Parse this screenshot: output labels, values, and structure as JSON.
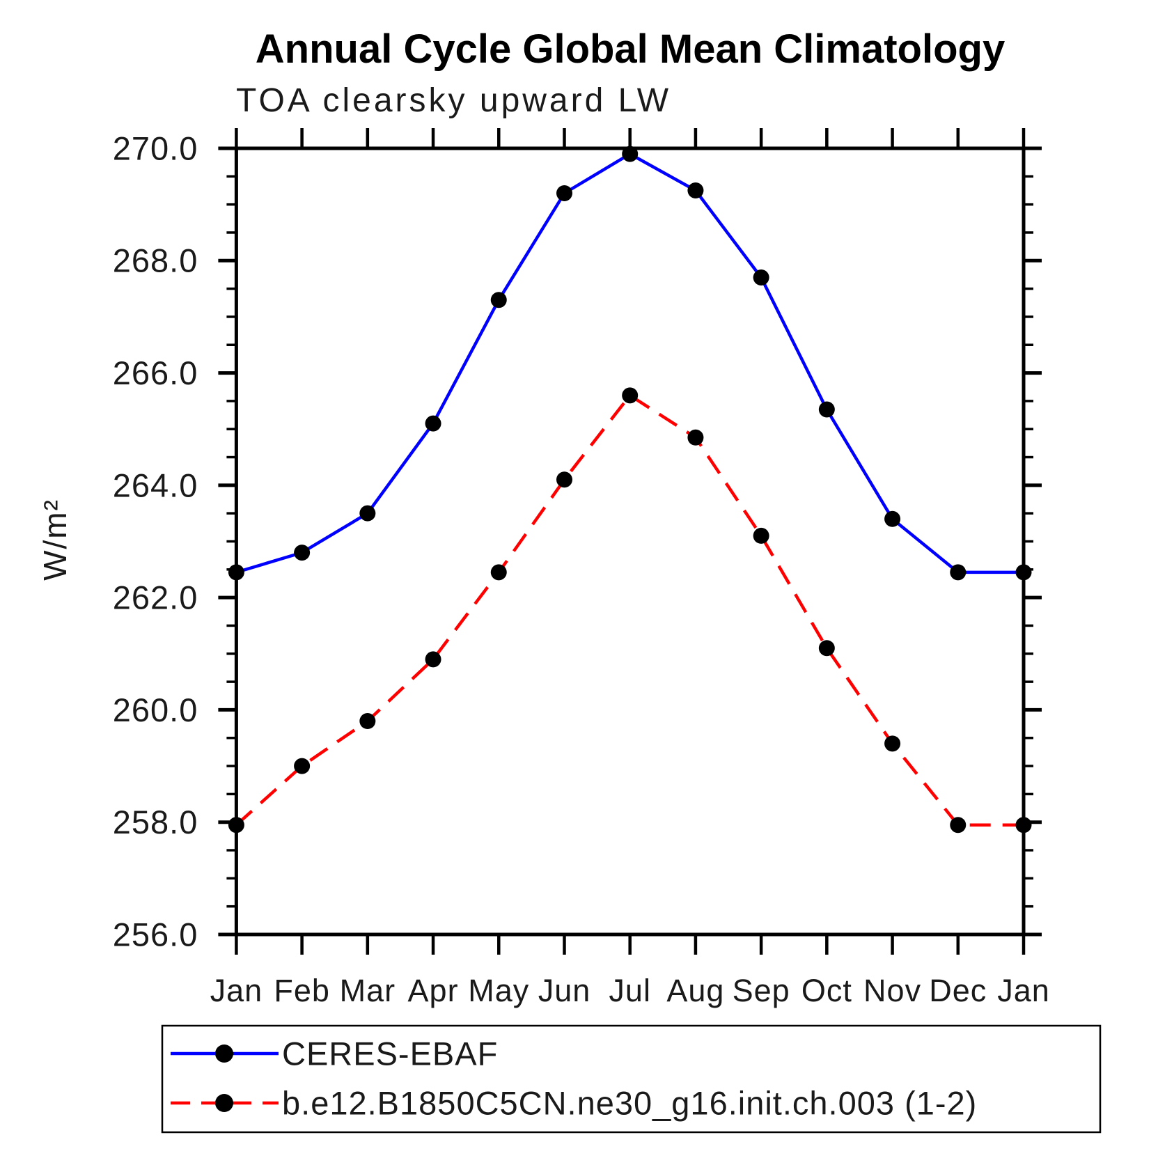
{
  "title": "Annual Cycle Global Mean Climatology",
  "subtitle": "TOA clearsky upward LW",
  "chart_data": {
    "type": "line",
    "title": "Annual Cycle Global Mean Climatology",
    "subtitle": "TOA clearsky upward LW",
    "xlabel": "",
    "ylabel": "W/m²",
    "categories": [
      "Jan",
      "Feb",
      "Mar",
      "Apr",
      "May",
      "Jun",
      "Jul",
      "Aug",
      "Sep",
      "Oct",
      "Nov",
      "Dec",
      "Jan"
    ],
    "ylim": [
      256.0,
      270.0
    ],
    "ytick_interval": 2.0,
    "yminor_interval": 0.5,
    "ytick_labels": [
      "256.0",
      "258.0",
      "260.0",
      "262.0",
      "264.0",
      "266.0",
      "268.0",
      "270.0"
    ],
    "grid": false,
    "legend_position": "bottom",
    "series": [
      {
        "name": "CERES-EBAF",
        "line_style": "solid",
        "line_color": "#0000ff",
        "marker": "circle",
        "marker_color": "#000000",
        "values": [
          262.45,
          262.8,
          263.5,
          265.1,
          267.3,
          269.2,
          269.9,
          269.25,
          267.7,
          265.35,
          263.4,
          262.45,
          262.45
        ]
      },
      {
        "name": "b.e12.B1850C5CN.ne30_g16.init.ch.003 (1-2)",
        "line_style": "dashed",
        "line_color": "#ff0000",
        "marker": "circle",
        "marker_color": "#000000",
        "values": [
          257.95,
          259.0,
          259.8,
          260.9,
          262.45,
          264.1,
          265.6,
          264.85,
          263.1,
          261.1,
          259.4,
          257.95,
          257.95
        ]
      }
    ],
    "colors": {
      "axis": "#000000",
      "text": "#1a1a1a",
      "background": "#ffffff"
    }
  }
}
